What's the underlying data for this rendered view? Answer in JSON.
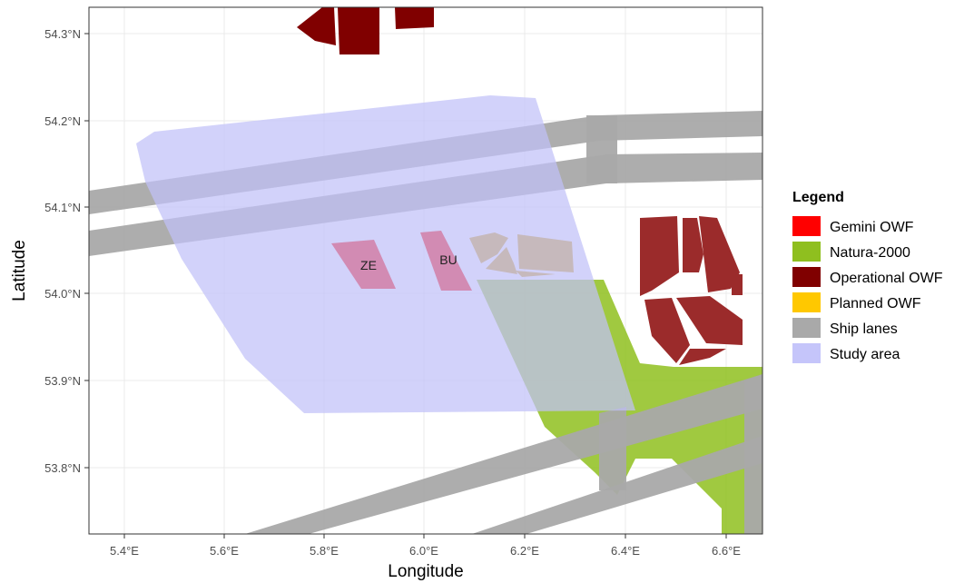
{
  "axes": {
    "x_title": "Longitude",
    "y_title": "Latitude",
    "x_ticks": [
      "5.4°E",
      "5.6°E",
      "5.8°E",
      "6.0°E",
      "6.2°E",
      "6.4°E",
      "6.6°E"
    ],
    "y_ticks": [
      "54.3°N",
      "54.2°N",
      "54.1°N",
      "54.0°N",
      "53.9°N",
      "53.8°N"
    ]
  },
  "site_labels": {
    "ze": "ZE",
    "bu": "BU"
  },
  "legend": {
    "title": "Legend",
    "items": [
      {
        "label": "Gemini OWF",
        "color": "#ff0000"
      },
      {
        "label": "Natura-2000",
        "color": "#8fbf1f"
      },
      {
        "label": "Operational OWF",
        "color": "#800000"
      },
      {
        "label": "Planned OWF",
        "color": "#ffc800"
      },
      {
        "label": "Ship lanes",
        "color": "#a9a9a9"
      },
      {
        "label": "Study area",
        "color": "#c5c5fa"
      }
    ]
  },
  "colors": {
    "study_area": "#c5c5fa",
    "ship_lanes": "#a9a9a9",
    "natura": "#8fbf1f",
    "gemini": "#ff0000",
    "planned": "#d4a520",
    "operational_north": "#800000",
    "operational_east": "#9b2b2b",
    "grid": "#ebebeb",
    "border": "#333333"
  }
}
